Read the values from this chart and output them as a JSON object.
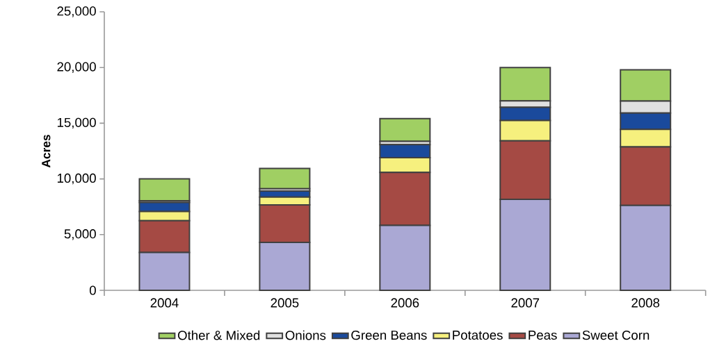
{
  "chart_data": {
    "type": "bar",
    "stacked": true,
    "ylabel": "Acres",
    "categories": [
      "2004",
      "2005",
      "2006",
      "2007",
      "2008"
    ],
    "series": [
      {
        "name": "Sweet Corn",
        "color": "#aaa8d4",
        "values": [
          3400,
          4300,
          5830,
          8170,
          7620
        ]
      },
      {
        "name": "Peas",
        "color": "#a54a44",
        "values": [
          2850,
          3370,
          4750,
          5250,
          5250
        ]
      },
      {
        "name": "Potatoes",
        "color": "#f6f07e",
        "values": [
          830,
          700,
          1330,
          1830,
          1580
        ]
      },
      {
        "name": "Green Beans",
        "color": "#1a4a9c",
        "values": [
          800,
          540,
          1170,
          1170,
          1460
        ]
      },
      {
        "name": "Onions",
        "color": "#e0e0e0",
        "values": [
          170,
          200,
          290,
          580,
          1080
        ]
      },
      {
        "name": "Other & Mixed",
        "color": "#a0cf63",
        "values": [
          1950,
          1830,
          2050,
          3000,
          2800
        ]
      }
    ],
    "ylim": [
      0,
      25000
    ],
    "yticks": [
      {
        "value": 0,
        "label": "0"
      },
      {
        "value": 5000,
        "label": "5,000"
      },
      {
        "value": 10000,
        "label": "10,000"
      },
      {
        "value": 15000,
        "label": "15,000"
      },
      {
        "value": 20000,
        "label": "20,000"
      },
      {
        "value": 25000,
        "label": "25,000"
      }
    ],
    "grid": false,
    "legend": "bottom"
  }
}
